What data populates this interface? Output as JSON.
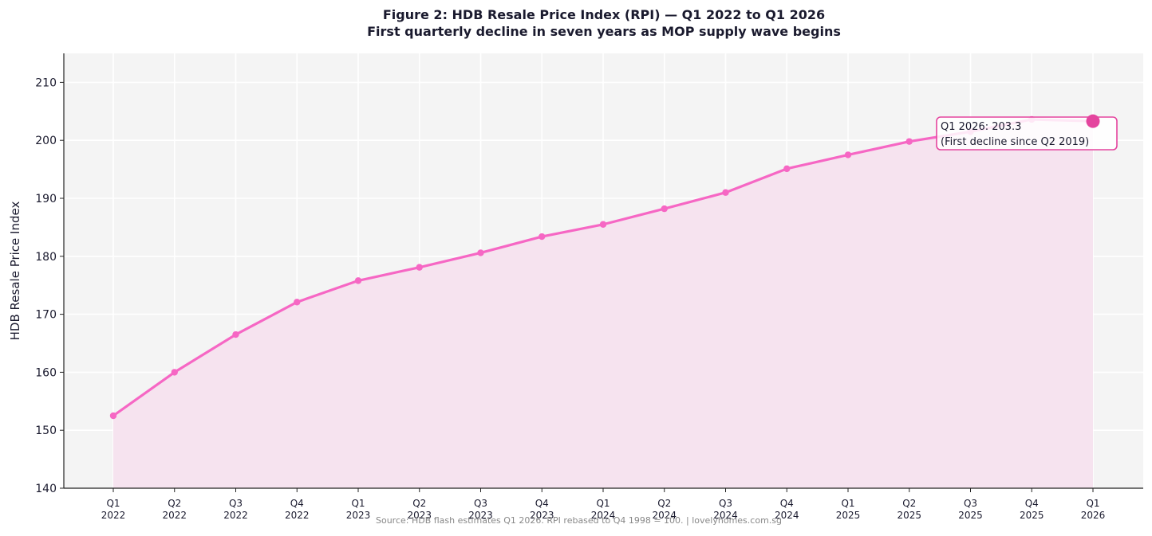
{
  "chart_data": {
    "type": "line",
    "title": "Figure 2: HDB Resale Price Index (RPI) — Q1 2022 to Q1 2026",
    "subtitle": "First quarterly decline in seven years as MOP supply wave begins",
    "xlabel": "",
    "ylabel": "HDB Resale Price Index",
    "categories": [
      [
        "Q1",
        "2022"
      ],
      [
        "Q2",
        "2022"
      ],
      [
        "Q3",
        "2022"
      ],
      [
        "Q4",
        "2022"
      ],
      [
        "Q1",
        "2023"
      ],
      [
        "Q2",
        "2023"
      ],
      [
        "Q3",
        "2023"
      ],
      [
        "Q4",
        "2023"
      ],
      [
        "Q1",
        "2024"
      ],
      [
        "Q2",
        "2024"
      ],
      [
        "Q3",
        "2024"
      ],
      [
        "Q4",
        "2024"
      ],
      [
        "Q1",
        "2025"
      ],
      [
        "Q2",
        "2025"
      ],
      [
        "Q3",
        "2025"
      ],
      [
        "Q4",
        "2025"
      ],
      [
        "Q1",
        "2026"
      ]
    ],
    "values": [
      152.5,
      160.0,
      166.5,
      172.1,
      175.8,
      178.1,
      180.6,
      183.4,
      185.5,
      188.2,
      191.0,
      195.1,
      197.5,
      199.8,
      201.5,
      203.6,
      203.3
    ],
    "ylim": [
      140,
      215
    ],
    "yticks": [
      140,
      150,
      160,
      170,
      180,
      190,
      200,
      210
    ],
    "grid": true,
    "line_color": "#f667c4",
    "fill_color": "#f5e1ee",
    "highlight_color": "#e4449e",
    "plot_bg": "#f4f4f4",
    "annotation": {
      "index": 16,
      "lines": [
        "Q1 2026: 203.3",
        "(First decline since Q2 2019)"
      ]
    },
    "source": "Source: HDB flash estimates Q1 2026. RPI rebased to Q4 1998 = 100. | lovelyhomes.com.sg"
  }
}
